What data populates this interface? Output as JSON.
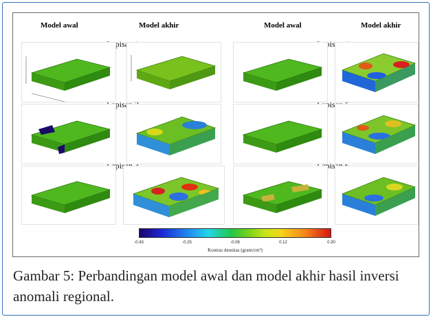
{
  "headers": {
    "col1": "Model awal",
    "col2": "Model akhir",
    "col3": "Model awal",
    "col4": "Model akhir"
  },
  "layers": [
    {
      "label": "Lapisan 1",
      "awal": "uniform",
      "akhir": "near-uniform"
    },
    {
      "label": "Lapisan 2",
      "awal": "uniform with negative block",
      "akhir": "varied"
    },
    {
      "label": "Lapisan 3",
      "awal": "uniform",
      "akhir": "varied"
    },
    {
      "label": "Lapisan 4",
      "awal": "uniform",
      "akhir": "varied"
    },
    {
      "label": "Lapisan 5",
      "awal": "uniform",
      "akhir": "varied"
    },
    {
      "label": "Lapisan 6",
      "awal": "uniform with positive blocks",
      "akhir": "varied"
    }
  ],
  "colorbar": {
    "ticks": [
      "-0.43",
      "-0.25",
      "-0.08",
      "0.12",
      "0.30"
    ],
    "title": "Kontras densitas (gram/cm³)",
    "colors": [
      "#20006e",
      "#1b2bd6",
      "#1f8ef0",
      "#22d6e8",
      "#20c84a",
      "#6fd11c",
      "#c9e516",
      "#f5d41c",
      "#f58a1a",
      "#d81414"
    ]
  },
  "caption": "Gambar 5: Perbandingan model awal dan model akhir hasil inversi anomali regional."
}
